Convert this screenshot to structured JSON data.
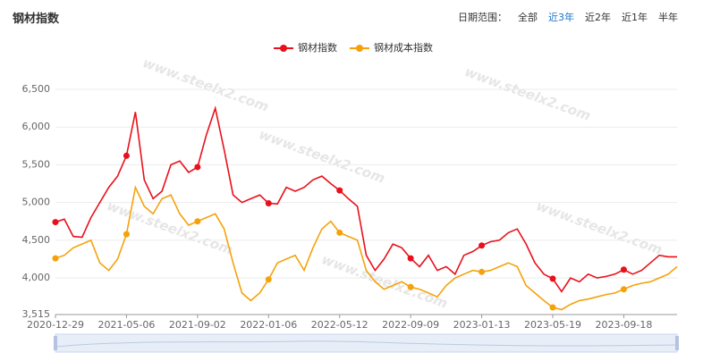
{
  "header": {
    "title": "钢材指数",
    "range_label": "日期范围：",
    "range_options": [
      "全部",
      "近3年",
      "近2年",
      "近1年",
      "半年"
    ],
    "active_option": 1
  },
  "watermark": "www.steelx2.com",
  "chart_data": {
    "type": "line",
    "categories": [
      "2020-12-29",
      null,
      null,
      null,
      null,
      null,
      null,
      null,
      "2021-05-06",
      null,
      null,
      null,
      null,
      null,
      null,
      null,
      "2021-09-02",
      null,
      null,
      null,
      null,
      null,
      null,
      null,
      "2022-01-06",
      null,
      null,
      null,
      null,
      null,
      null,
      null,
      "2022-05-12",
      null,
      null,
      null,
      null,
      null,
      null,
      null,
      "2022-09-09",
      null,
      null,
      null,
      null,
      null,
      null,
      null,
      "2023-01-13",
      null,
      null,
      null,
      null,
      null,
      null,
      null,
      "2023-05-19",
      null,
      null,
      null,
      null,
      null,
      null,
      null,
      "2023-09-18",
      null,
      null,
      null,
      null,
      null,
      null
    ],
    "series": [
      {
        "name": "钢材指数",
        "color": "#e8101a",
        "values": [
          4740,
          4780,
          4550,
          4540,
          4800,
          5000,
          5200,
          5350,
          5620,
          6200,
          5300,
          5050,
          5150,
          5500,
          5550,
          5400,
          5470,
          5900,
          6250,
          5700,
          5100,
          5000,
          5050,
          5100,
          4990,
          4980,
          5200,
          5150,
          5200,
          5300,
          5350,
          5250,
          5160,
          5050,
          4950,
          4300,
          4100,
          4250,
          4450,
          4400,
          4260,
          4150,
          4300,
          4100,
          4150,
          4050,
          4300,
          4350,
          4430,
          4480,
          4500,
          4600,
          4650,
          4450,
          4200,
          4050,
          3990,
          3820,
          4000,
          3950,
          4050,
          4000,
          4020,
          4050,
          4110,
          4050,
          4100,
          4200,
          4300,
          4280,
          4280
        ]
      },
      {
        "name": "钢材成本指数",
        "color": "#f5a20a",
        "values": [
          4260,
          4300,
          4400,
          4450,
          4500,
          4200,
          4100,
          4250,
          4580,
          5200,
          4950,
          4850,
          5050,
          5100,
          4850,
          4700,
          4750,
          4800,
          4850,
          4650,
          4200,
          3800,
          3700,
          3800,
          3980,
          4200,
          4250,
          4300,
          4100,
          4400,
          4650,
          4750,
          4600,
          4550,
          4500,
          4100,
          3950,
          3850,
          3900,
          3950,
          3880,
          3850,
          3800,
          3750,
          3900,
          4000,
          4050,
          4100,
          4080,
          4100,
          4150,
          4200,
          4150,
          3900,
          3800,
          3700,
          3610,
          3580,
          3650,
          3700,
          3720,
          3750,
          3780,
          3800,
          3850,
          3900,
          3930,
          3950,
          4000,
          4050,
          4150
        ]
      }
    ],
    "ylim": [
      3515,
      6500
    ],
    "yticks": [
      {
        "value": 3515,
        "label": "3,515"
      },
      {
        "value": 4000,
        "label": "4,000"
      },
      {
        "value": 4500,
        "label": "4,500"
      },
      {
        "value": 5000,
        "label": "5,000"
      },
      {
        "value": 5500,
        "label": "5,500"
      },
      {
        "value": 6000,
        "label": "6,000"
      },
      {
        "value": 6500,
        "label": "6,500"
      }
    ],
    "grid": true,
    "legend": "top"
  }
}
